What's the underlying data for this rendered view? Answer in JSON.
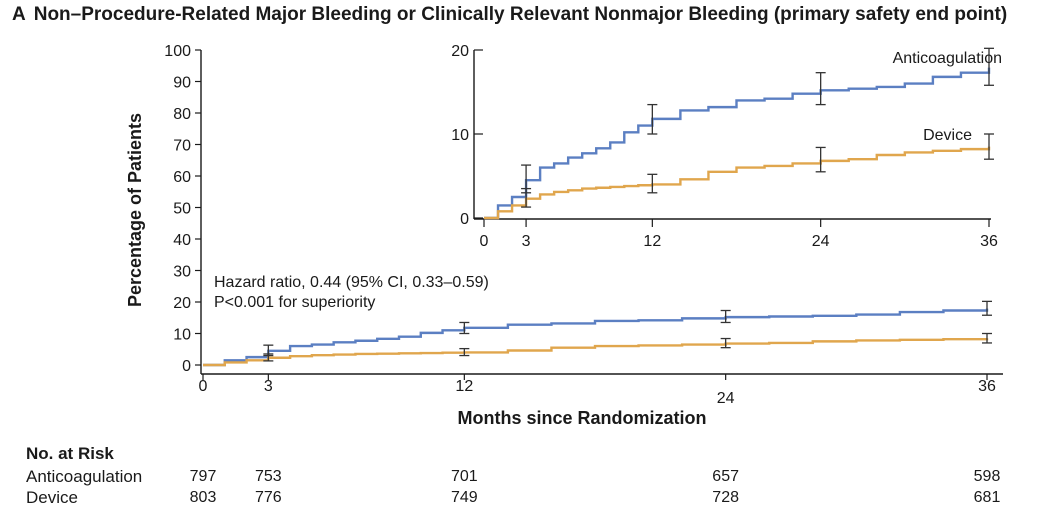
{
  "panel_letter": "A",
  "panel_title": "Non–Procedure-Related Major Bleeding or Clinically Relevant Nonmajor Bleeding (primary safety end point)",
  "colors": {
    "anticoagulation": "#5b7fc2",
    "device": "#e0a64d",
    "axis": "#1a1a1a"
  },
  "chart_data": [
    {
      "type": "line",
      "ylabel": "Percentage of Patients",
      "xlabel": "Months since Randomization",
      "xlim": [
        0,
        36
      ],
      "ylim": [
        0,
        100
      ],
      "xticks": [
        0,
        3,
        12,
        24,
        36
      ],
      "yticks": [
        0,
        10,
        20,
        30,
        40,
        50,
        60,
        70,
        80,
        90,
        100
      ],
      "series": [
        {
          "name": "Anticoagulation",
          "color": "#5b7fc2",
          "x": [
            0,
            1,
            2,
            3,
            4,
            5,
            6,
            7,
            8,
            9,
            10,
            11,
            12,
            14,
            16,
            18,
            20,
            22,
            24,
            26,
            28,
            30,
            32,
            34,
            36
          ],
          "y": [
            0,
            1.5,
            2.5,
            4.5,
            6.0,
            6.5,
            7.2,
            7.7,
            8.3,
            9.0,
            10.2,
            11.0,
            11.8,
            12.8,
            13.2,
            14.0,
            14.2,
            14.8,
            15.2,
            15.4,
            15.6,
            16.0,
            16.8,
            17.3,
            17.9
          ],
          "ci": [
            [
              3,
              4.5,
              3.0,
              6.3
            ],
            [
              12,
              11.8,
              10.0,
              13.5
            ],
            [
              24,
              15.2,
              13.5,
              17.3
            ],
            [
              36,
              17.9,
              15.8,
              20.2
            ]
          ]
        },
        {
          "name": "Device",
          "color": "#e0a64d",
          "x": [
            0,
            1,
            2,
            3,
            4,
            5,
            6,
            7,
            8,
            9,
            10,
            11,
            12,
            14,
            16,
            18,
            20,
            22,
            24,
            26,
            28,
            30,
            32,
            34,
            36
          ],
          "y": [
            0,
            0.8,
            1.5,
            2.3,
            2.8,
            3.1,
            3.3,
            3.5,
            3.6,
            3.7,
            3.8,
            3.9,
            4.0,
            4.6,
            5.5,
            6.0,
            6.2,
            6.5,
            6.8,
            7.0,
            7.5,
            7.8,
            8.0,
            8.2,
            8.5
          ],
          "ci": [
            [
              3,
              2.3,
              1.3,
              3.5
            ],
            [
              12,
              4.0,
              3.0,
              5.2
            ],
            [
              24,
              6.8,
              5.5,
              8.4
            ],
            [
              36,
              8.5,
              7.0,
              10.0
            ]
          ]
        }
      ],
      "annotation_lines": [
        "Hazard ratio, 0.44 (95% CI, 0.33–0.59)",
        "P<0.001 for superiority"
      ]
    },
    {
      "type": "line",
      "role": "inset",
      "xlim": [
        0,
        36
      ],
      "ylim": [
        0,
        20
      ],
      "xticks": [
        0,
        3,
        12,
        24,
        36
      ],
      "yticks": [
        0,
        10,
        20
      ],
      "series_labels": [
        "Anticoagulation",
        "Device"
      ]
    }
  ],
  "risk_table": {
    "heading": "No. at Risk",
    "timepoints": [
      0,
      3,
      12,
      24,
      36
    ],
    "rows": [
      {
        "label": "Anticoagulation",
        "values": [
          "797",
          "753",
          "701",
          "657",
          "598"
        ]
      },
      {
        "label": "Device",
        "values": [
          "803",
          "776",
          "749",
          "728",
          "681"
        ]
      }
    ]
  }
}
